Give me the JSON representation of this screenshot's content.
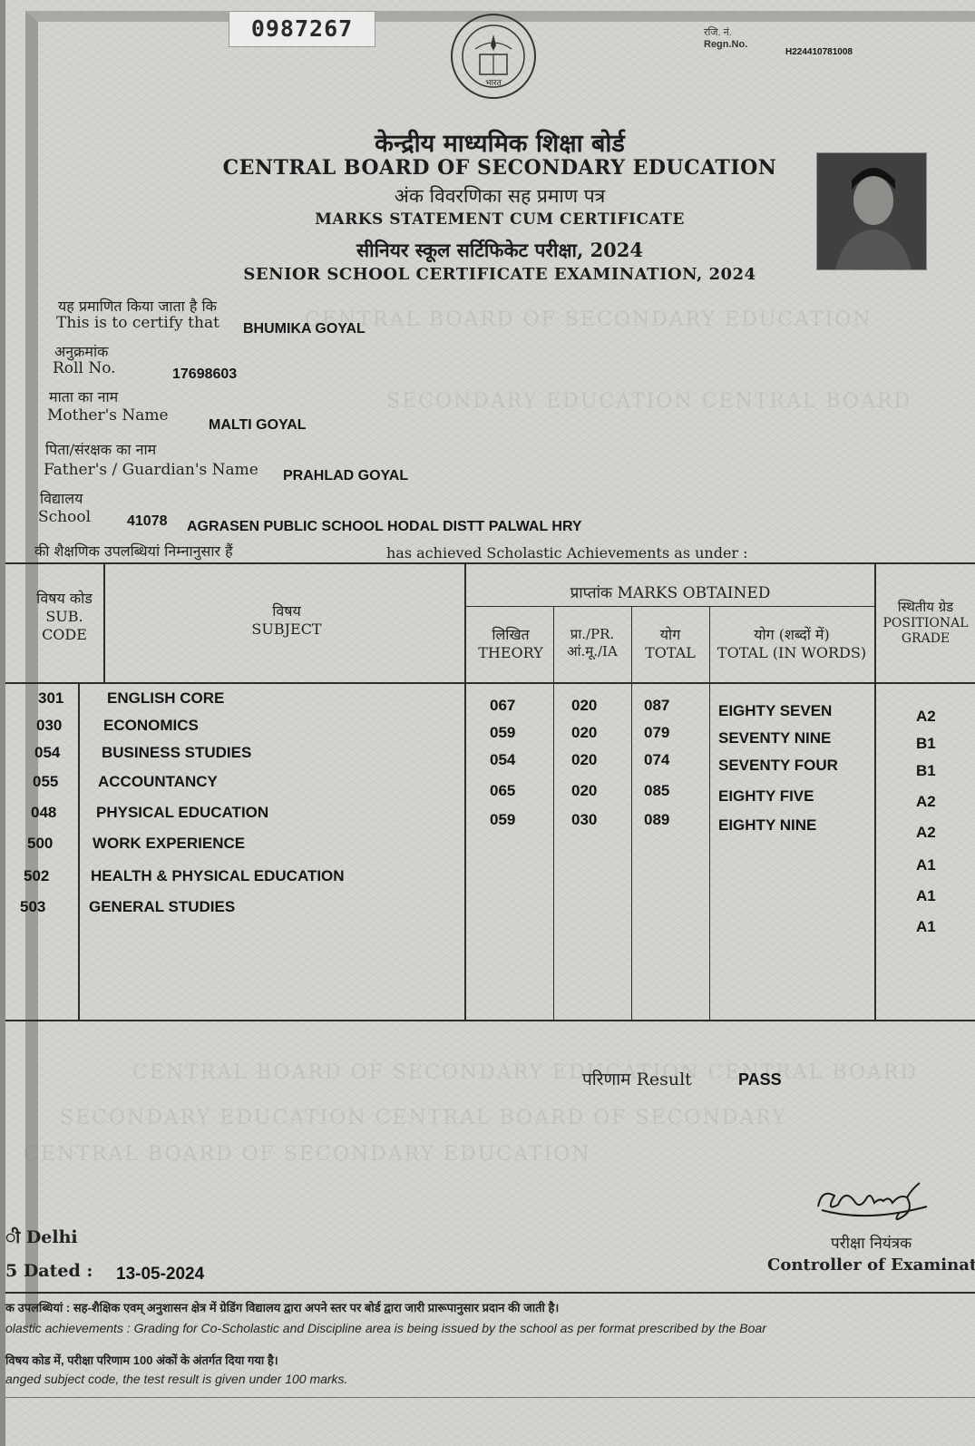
{
  "serial_no": "0987267",
  "regn": {
    "hindi_label": "रजि. नं.",
    "label": "Regn.No.",
    "value": "H224410781008"
  },
  "emblem_text": "भारत",
  "header": {
    "board_hindi": "केन्द्रीय माध्यमिक शिक्षा बोर्ड",
    "board_english": "CENTRAL BOARD OF SECONDARY EDUCATION",
    "statement_hindi": "अंक विवरणिका सह प्रमाण पत्र",
    "statement_english": "MARKS STATEMENT CUM CERTIFICATE",
    "exam_hindi": "सीनियर स्कूल सर्टिफिकेट परीक्षा, 2024",
    "exam_english": "SENIOR SCHOOL CERTIFICATE EXAMINATION, 2024"
  },
  "details": {
    "certify_hindi": "यह प्रमाणित किया जाता है कि",
    "certify_english": "This is to certify that",
    "name": "BHUMIKA GOYAL",
    "roll_hindi": "अनुक्रमांक",
    "roll_english": "Roll No.",
    "roll_no": "17698603",
    "mother_hindi": "माता का नाम",
    "mother_english": "Mother's Name",
    "mother_name": "MALTI GOYAL",
    "father_hindi": "पिता/संरक्षक का नाम",
    "father_english": "Father's / Guardian's Name",
    "father_name": "PRAHLAD GOYAL",
    "school_hindi": "विद्यालय",
    "school_english": "School",
    "school_code": "41078",
    "school_name": "AGRASEN PUBLIC SCHOOL HODAL DISTT PALWAL HRY",
    "achievement_hindi": "की शैक्षणिक उपलब्धियां निम्नानुसार हैं",
    "achievement_english": "has achieved Scholastic Achievements as under :"
  },
  "table": {
    "col_code_hindi": "विषय कोड",
    "col_code_english": "SUB. CODE",
    "col_subject_hindi": "विषय",
    "col_subject_english": "SUBJECT",
    "marks_hindi": "प्राप्तांक",
    "marks_english": "MARKS OBTAINED",
    "theory_hindi": "लिखित",
    "theory_english": "THEORY",
    "pr_label": "प्रा./PR.",
    "ia_label": "आं.मू./IA",
    "total_hindi": "योग",
    "total_english": "TOTAL",
    "words_hindi": "योग (शब्दों में)",
    "words_english": "TOTAL (IN WORDS)",
    "grade_hindi": "स्थितीय ग्रेड",
    "grade_english": "POSITIONAL GRADE",
    "rows": [
      {
        "code": "301",
        "subject": "ENGLISH CORE",
        "theory": "067",
        "pr": "020",
        "total": "087",
        "words": "EIGHTY SEVEN",
        "grade": "A2"
      },
      {
        "code": "030",
        "subject": "ECONOMICS",
        "theory": "059",
        "pr": "020",
        "total": "079",
        "words": "SEVENTY NINE",
        "grade": "B1"
      },
      {
        "code": "054",
        "subject": "BUSINESS STUDIES",
        "theory": "054",
        "pr": "020",
        "total": "074",
        "words": "SEVENTY FOUR",
        "grade": "B1"
      },
      {
        "code": "055",
        "subject": "ACCOUNTANCY",
        "theory": "065",
        "pr": "020",
        "total": "085",
        "words": "EIGHTY FIVE",
        "grade": "A2"
      },
      {
        "code": "048",
        "subject": "PHYSICAL EDUCATION",
        "theory": "059",
        "pr": "030",
        "total": "089",
        "words": "EIGHTY NINE",
        "grade": "A2"
      },
      {
        "code": "500",
        "subject": "WORK EXPERIENCE",
        "theory": "",
        "pr": "",
        "total": "",
        "words": "",
        "grade": "A1"
      },
      {
        "code": "502",
        "subject": "HEALTH & PHYSICAL EDUCATION",
        "theory": "",
        "pr": "",
        "total": "",
        "words": "",
        "grade": "A1"
      },
      {
        "code": "503",
        "subject": "GENERAL STUDIES",
        "theory": "",
        "pr": "",
        "total": "",
        "words": "",
        "grade": "A1"
      }
    ]
  },
  "result": {
    "hindi": "परिणाम",
    "english": "Result",
    "value": "PASS"
  },
  "footer": {
    "place": "ी Delhi",
    "dated_label": "5 Dated :",
    "date": "13-05-2024",
    "controller_hindi": "परीक्षा नियंत्रक",
    "controller_english": "Controller of Examination",
    "note1_hindi": "क उपलब्धियां : सह-शैक्षिक एवम् अनुशासन क्षेत्र में ग्रेडिंग विद्यालय द्वारा अपने स्तर पर बोर्ड द्वारा जारी प्रारूपानुसार प्रदान की जाती है।",
    "note1_english": "olastic achievements : Grading for Co-Scholastic and Discipline area is being issued by the school as per format prescribed by the Boar",
    "note2_hindi": "विषय कोड में, परीक्षा परिणाम 100 अंकों के अंतर्गत दिया गया है।",
    "note2_english": "anged subject code, the test result is given under 100 marks."
  }
}
